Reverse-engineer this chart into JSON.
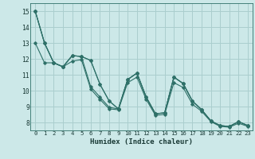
{
  "xlabel": "Humidex (Indice chaleur)",
  "bg_color": "#cce8e8",
  "grid_color": "#aacece",
  "line_color": "#2e7068",
  "xlim": [
    -0.5,
    23.5
  ],
  "ylim": [
    7.5,
    15.5
  ],
  "xticks": [
    0,
    1,
    2,
    3,
    4,
    5,
    6,
    7,
    8,
    9,
    10,
    11,
    12,
    13,
    14,
    15,
    16,
    17,
    18,
    19,
    20,
    21,
    22,
    23
  ],
  "yticks": [
    8,
    9,
    10,
    11,
    12,
    13,
    14,
    15
  ],
  "series": [
    [
      15.0,
      13.0,
      11.75,
      11.5,
      12.2,
      12.15,
      11.9,
      10.4,
      9.35,
      8.85,
      10.7,
      11.1,
      9.6,
      8.55,
      8.6,
      10.85,
      10.45,
      9.35,
      8.8,
      8.1,
      7.8,
      7.75,
      8.05,
      7.8
    ],
    [
      15.0,
      13.0,
      11.75,
      11.5,
      12.2,
      12.15,
      10.25,
      9.6,
      8.95,
      8.85,
      10.7,
      11.1,
      9.6,
      8.55,
      8.6,
      10.85,
      10.45,
      9.35,
      8.8,
      8.1,
      7.8,
      7.75,
      8.05,
      7.8
    ],
    [
      15.0,
      13.0,
      11.75,
      11.5,
      11.85,
      11.95,
      10.1,
      9.45,
      8.85,
      8.8,
      10.5,
      10.85,
      9.45,
      8.45,
      8.5,
      10.5,
      10.2,
      9.15,
      8.7,
      8.05,
      7.75,
      7.7,
      7.95,
      7.75
    ],
    [
      13.0,
      11.75,
      11.75,
      11.5,
      12.2,
      12.15,
      11.9,
      10.4,
      9.35,
      8.85,
      10.7,
      11.1,
      9.6,
      8.55,
      8.6,
      10.85,
      10.45,
      9.35,
      8.8,
      8.1,
      7.8,
      7.75,
      8.05,
      7.8
    ]
  ]
}
